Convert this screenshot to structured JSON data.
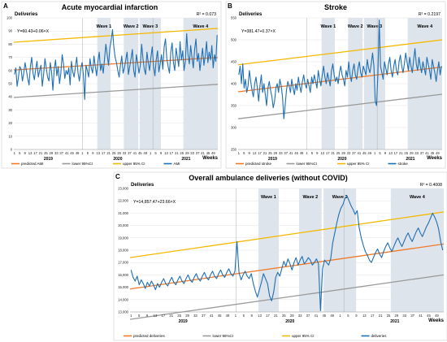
{
  "chart_data": [
    {
      "panel_letter": "A",
      "type": "line",
      "title": "Acute myocardial infarction",
      "ylabel": "Deliveries",
      "xlabel": "Weeks",
      "ylim": [
        0,
        100
      ],
      "yticks": [
        0,
        10,
        20,
        30,
        40,
        50,
        60,
        70,
        80,
        90,
        100
      ],
      "equation": "Y=60.43+0.06×X",
      "r2": "R² = 0.073",
      "week_tick_labels": [
        "1",
        "5",
        "9",
        "13",
        "17",
        "21",
        "25",
        "29",
        "33",
        "37",
        "41",
        "45",
        "49",
        "1",
        "5",
        "9",
        "13",
        "17",
        "21",
        "25",
        "29",
        "33",
        "37",
        "41",
        "45",
        "49",
        "1",
        "5",
        "9",
        "13",
        "17",
        "21",
        "25",
        "29",
        "33",
        "37",
        "41",
        "45",
        "49"
      ],
      "years": [
        "2019",
        "2020",
        "2021"
      ],
      "waves": [
        {
          "name": "Wave 1",
          "start_week_index": 63,
          "end_week_index": 72
        },
        {
          "name": "Wave 2",
          "start_week_index": 83,
          "end_week_index": 93
        },
        {
          "name": "Wave 3",
          "start_week_index": 95,
          "end_week_index": 110
        },
        {
          "name": "Wave 4",
          "start_week_index": 128,
          "end_week_index": 153
        }
      ],
      "legend": [
        "predicted AMI",
        "lower 95%CI",
        "upper 95% CI",
        "AMI"
      ],
      "trend_lines": {
        "predicted": {
          "start": 60.4,
          "end": 69.9
        },
        "lower": {
          "start": 39.5,
          "end": 49.5
        },
        "upper": {
          "start": 81.5,
          "end": 92
        }
      },
      "series": [
        {
          "name": "AMI",
          "values": [
            57,
            62,
            48,
            55,
            63,
            61,
            52,
            58,
            66,
            60,
            54,
            49,
            63,
            70,
            58,
            53,
            61,
            67,
            55,
            60,
            64,
            48,
            57,
            69,
            62,
            55,
            52,
            66,
            59,
            45,
            61,
            68,
            56,
            63,
            50,
            58,
            72,
            65,
            54,
            60,
            57,
            62,
            49,
            67,
            59,
            55,
            63,
            70,
            58,
            52,
            61,
            66,
            57,
            38,
            64,
            60,
            55,
            69,
            62,
            58,
            71,
            63,
            56,
            67,
            74,
            60,
            65,
            58,
            69,
            80,
            72,
            64,
            77,
            83,
            91,
            78,
            70,
            66,
            60,
            55,
            64,
            71,
            58,
            62,
            68,
            74,
            57,
            63,
            69,
            76,
            60,
            55,
            72,
            66,
            58,
            64,
            80,
            69,
            61,
            57,
            74,
            66,
            60,
            70,
            78,
            63,
            56,
            68,
            75,
            59,
            65,
            72,
            61,
            78,
            84,
            69,
            63,
            58,
            74,
            81,
            66,
            60,
            77,
            70,
            63,
            82,
            68,
            75,
            60,
            67,
            88,
            72,
            65,
            79,
            70,
            62,
            76,
            84,
            67,
            73,
            60,
            69,
            77,
            64,
            71,
            82,
            66,
            74,
            68,
            79,
            62,
            72,
            67,
            87
          ]
        }
      ]
    },
    {
      "panel_letter": "B",
      "type": "line",
      "title": "Stroke",
      "ylabel": "Deliveries",
      "xlabel": "Weeks",
      "ylim": [
        250,
        550
      ],
      "yticks": [
        250,
        300,
        350,
        400,
        450,
        500,
        550
      ],
      "equation": "Y=381.47+0.37×X",
      "r2": "R² = 0.2197",
      "week_tick_labels": [
        "1",
        "5",
        "9",
        "13",
        "17",
        "21",
        "25",
        "29",
        "33",
        "37",
        "41",
        "45",
        "49",
        "1",
        "5",
        "9",
        "13",
        "17",
        "21",
        "25",
        "29",
        "33",
        "37",
        "41",
        "45",
        "49",
        "1",
        "5",
        "9",
        "13",
        "17",
        "21",
        "25",
        "29",
        "33",
        "37",
        "41",
        "45",
        "49"
      ],
      "years": [
        "2019",
        "2020",
        "2021"
      ],
      "waves": [
        {
          "name": "Wave 1",
          "start_week_index": 63,
          "end_week_index": 72
        },
        {
          "name": "Wave 2",
          "start_week_index": 83,
          "end_week_index": 93
        },
        {
          "name": "Wave 3",
          "start_week_index": 95,
          "end_week_index": 110
        },
        {
          "name": "Wave 4",
          "start_week_index": 128,
          "end_week_index": 153
        }
      ],
      "legend": [
        "predicted stroke",
        "lower 95%CI",
        "upper 95% CI",
        "stroke"
      ],
      "trend_lines": {
        "predicted": {
          "start": 381.5,
          "end": 438
        },
        "lower": {
          "start": 320,
          "end": 376
        },
        "upper": {
          "start": 443,
          "end": 500
        }
      },
      "series": [
        {
          "name": "stroke",
          "values": [
            420,
            440,
            400,
            445,
            390,
            410,
            380,
            395,
            430,
            405,
            385,
            370,
            400,
            415,
            390,
            360,
            395,
            420,
            380,
            400,
            375,
            350,
            390,
            405,
            385,
            370,
            345,
            360,
            390,
            400,
            380,
            410,
            395,
            370,
            320,
            350,
            385,
            405,
            395,
            380,
            410,
            390,
            375,
            400,
            385,
            415,
            395,
            380,
            405,
            420,
            400,
            390,
            410,
            395,
            380,
            415,
            400,
            420,
            405,
            390,
            430,
            410,
            395,
            420,
            440,
            415,
            400,
            425,
            410,
            395,
            430,
            445,
            420,
            405,
            415,
            400,
            425,
            440,
            420,
            410,
            395,
            430,
            415,
            450,
            420,
            405,
            430,
            445,
            420,
            410,
            435,
            450,
            425,
            415,
            440,
            430,
            420,
            455,
            435,
            425,
            445,
            470,
            440,
            360,
            350,
            420,
            545,
            440,
            425,
            410,
            450,
            435,
            420,
            445,
            460,
            430,
            415,
            440,
            455,
            430,
            420,
            450,
            465,
            440,
            425,
            445,
            470,
            450,
            430,
            460,
            440,
            425,
            455,
            480,
            445,
            430,
            460,
            440,
            425,
            450,
            435,
            420,
            460,
            445,
            430,
            410,
            455,
            440,
            425,
            405,
            430,
            450,
            420,
            440
          ]
        }
      ]
    },
    {
      "panel_letter": "C",
      "type": "line",
      "title": "Overall ambulance deliveries (without COVID)",
      "ylabel": "Deliveries",
      "xlabel": "Weeks",
      "ylim": [
        13000,
        23000
      ],
      "yticks": [
        13000,
        14000,
        15000,
        16000,
        17000,
        18000,
        19000,
        20000,
        21000,
        22000,
        23000
      ],
      "ytick_labels": [
        "13,000",
        "14,000",
        "15,000",
        "16,000",
        "17,000",
        "18,000",
        "19,000",
        "20,000",
        "21,000",
        "22,000",
        "23,000"
      ],
      "equation": "Y=14,857.47+23.66×X",
      "r2": "R² = 0.4008",
      "week_tick_labels": [
        "1",
        "5",
        "9",
        "13",
        "17",
        "21",
        "25",
        "29",
        "33",
        "37",
        "41",
        "45",
        "49",
        "1",
        "5",
        "9",
        "13",
        "17",
        "21",
        "25",
        "29",
        "33",
        "37",
        "41",
        "45",
        "49",
        "1",
        "5",
        "9",
        "13",
        "17",
        "21",
        "25",
        "29",
        "33",
        "37",
        "41",
        "45",
        "49"
      ],
      "years": [
        "2019",
        "2020",
        "2021"
      ],
      "waves": [
        {
          "name": "Wave 1",
          "start_week_index": 63,
          "end_week_index": 72
        },
        {
          "name": "Wave 2",
          "start_week_index": 83,
          "end_week_index": 93
        },
        {
          "name": "Wave 3",
          "start_week_index": 95,
          "end_week_index": 110
        },
        {
          "name": "Wave 4",
          "start_week_index": 128,
          "end_week_index": 153
        }
      ],
      "legend": [
        "predicted deliveries",
        "lower 95%CI",
        "upper 95% CI",
        "deliveries"
      ],
      "trend_lines": {
        "predicted": {
          "start": 14860,
          "end": 18500
        },
        "lower": {
          "start": 12400,
          "end": 16000
        },
        "upper": {
          "start": 17400,
          "end": 21100
        }
      },
      "series": [
        {
          "name": "deliveries",
          "values": [
            16400,
            15800,
            15500,
            15900,
            15200,
            15600,
            15300,
            14900,
            15400,
            15100,
            15500,
            15200,
            14800,
            15300,
            15000,
            15400,
            15700,
            15300,
            15100,
            15500,
            15800,
            15400,
            15200,
            15600,
            15900,
            15500,
            15300,
            15700,
            16000,
            15600,
            15400,
            15800,
            16100,
            15700,
            15500,
            15900,
            16200,
            15800,
            15600,
            16000,
            16300,
            15900,
            15700,
            16100,
            16400,
            16000,
            15800,
            16200,
            16500,
            16100,
            15900,
            16300,
            18700,
            16200,
            15600,
            16000,
            16300,
            15900,
            15700,
            16100,
            15300,
            14700,
            14200,
            14800,
            15400,
            16100,
            15700,
            15300,
            14300,
            13900,
            14600,
            15800,
            16200,
            15900,
            16500,
            17100,
            16700,
            17300,
            16900,
            16400,
            17000,
            17400,
            16800,
            17200,
            17500,
            16900,
            17100,
            17400,
            17200,
            16800,
            17000,
            17300,
            16900,
            13100,
            16500,
            17200,
            17000,
            16800,
            17300,
            18600,
            19400,
            20200,
            20900,
            21400,
            21700,
            22200,
            22400,
            22000,
            21600,
            21300,
            20900,
            21200,
            19800,
            19000,
            18400,
            17900,
            17600,
            17200,
            17000,
            17400,
            17800,
            18100,
            17700,
            17400,
            17900,
            18300,
            18600,
            18200,
            17900,
            18300,
            18700,
            19000,
            18600,
            18300,
            18700,
            19100,
            19400,
            19000,
            18700,
            19100,
            19500,
            19800,
            19400,
            19100,
            19500,
            19900,
            20200,
            20600,
            21000,
            20700,
            20300,
            19700,
            18700,
            18000
          ]
        }
      ]
    }
  ]
}
